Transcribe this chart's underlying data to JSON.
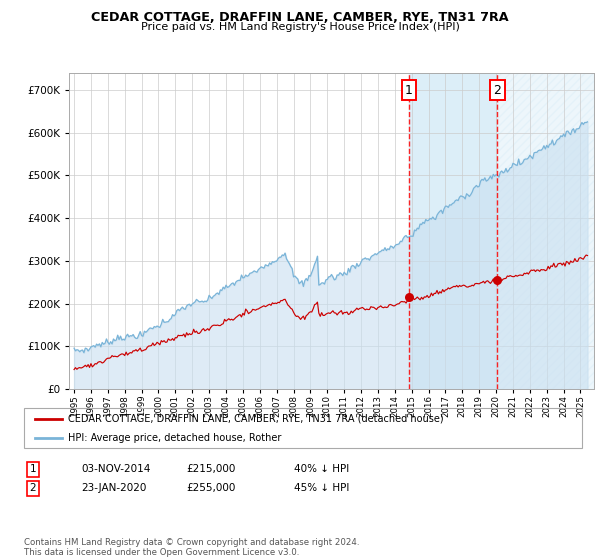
{
  "title": "CEDAR COTTAGE, DRAFFIN LANE, CAMBER, RYE, TN31 7RA",
  "subtitle": "Price paid vs. HM Land Registry's House Price Index (HPI)",
  "ylim": [
    0,
    740000
  ],
  "yticks": [
    0,
    100000,
    200000,
    300000,
    400000,
    500000,
    600000,
    700000
  ],
  "ytick_labels": [
    "£0",
    "£100K",
    "£200K",
    "£300K",
    "£400K",
    "£500K",
    "£600K",
    "£700K"
  ],
  "xlim_start": 1994.7,
  "xlim_end": 2025.8,
  "transaction1_date": 2014.84,
  "transaction1_price": 215000,
  "transaction2_date": 2020.07,
  "transaction2_price": 255000,
  "hpi_color": "#7ab4d8",
  "hpi_fill_color": "#c8dff0",
  "price_color": "#cc0000",
  "grid_color": "#cccccc",
  "legend_label_price": "CEDAR COTTAGE, DRAFFIN LANE, CAMBER, RYE, TN31 7RA (detached house)",
  "legend_label_hpi": "HPI: Average price, detached house, Rother",
  "footnote": "Contains HM Land Registry data © Crown copyright and database right 2024.\nThis data is licensed under the Open Government Licence v3.0.",
  "table_rows": [
    {
      "num": "1",
      "date": "03-NOV-2014",
      "price": "£215,000",
      "hpi": "40% ↓ HPI"
    },
    {
      "num": "2",
      "date": "23-JAN-2020",
      "price": "£255,000",
      "hpi": "45% ↓ HPI"
    }
  ]
}
